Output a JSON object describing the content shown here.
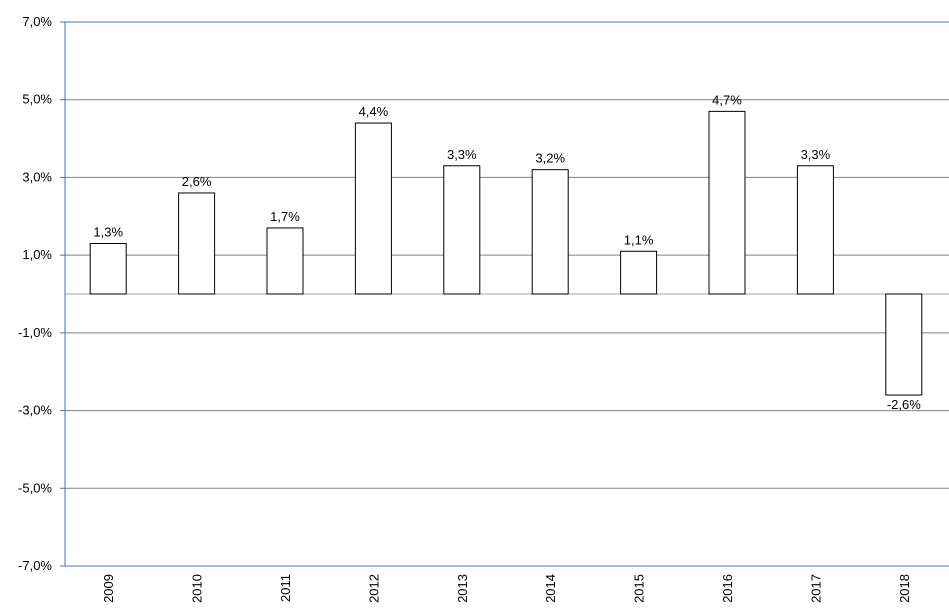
{
  "chart_data": {
    "type": "bar",
    "title": "",
    "xlabel": "",
    "ylabel": "",
    "categories": [
      "2009",
      "2010",
      "2011",
      "2012",
      "2013",
      "2014",
      "2015",
      "2016",
      "2017",
      "2018"
    ],
    "values": [
      1.3,
      2.6,
      1.7,
      4.4,
      3.3,
      3.2,
      1.1,
      4.7,
      3.3,
      -2.6
    ],
    "data_labels": [
      "1,3%",
      "2,6%",
      "1,7%",
      "4,4%",
      "3,3%",
      "3,2%",
      "1,1%",
      "4,7%",
      "3,3%",
      "-2,6%"
    ],
    "ylim": [
      -7,
      7
    ],
    "yticks": [
      7,
      5,
      3,
      1,
      -1,
      -3,
      -5,
      -7
    ],
    "ytick_labels": [
      "7,0%",
      "5,0%",
      "3,0%",
      "1,0%",
      "-1,0%",
      "-3,0%",
      "-5,0%",
      "-7,0%"
    ],
    "grid": true,
    "legend": "none",
    "colors": {
      "bar_fill": "#ffffff",
      "bar_stroke": "#000000",
      "grid": "#808080",
      "zero_line": "#a6a6a6",
      "axis": "#4472c4"
    }
  }
}
